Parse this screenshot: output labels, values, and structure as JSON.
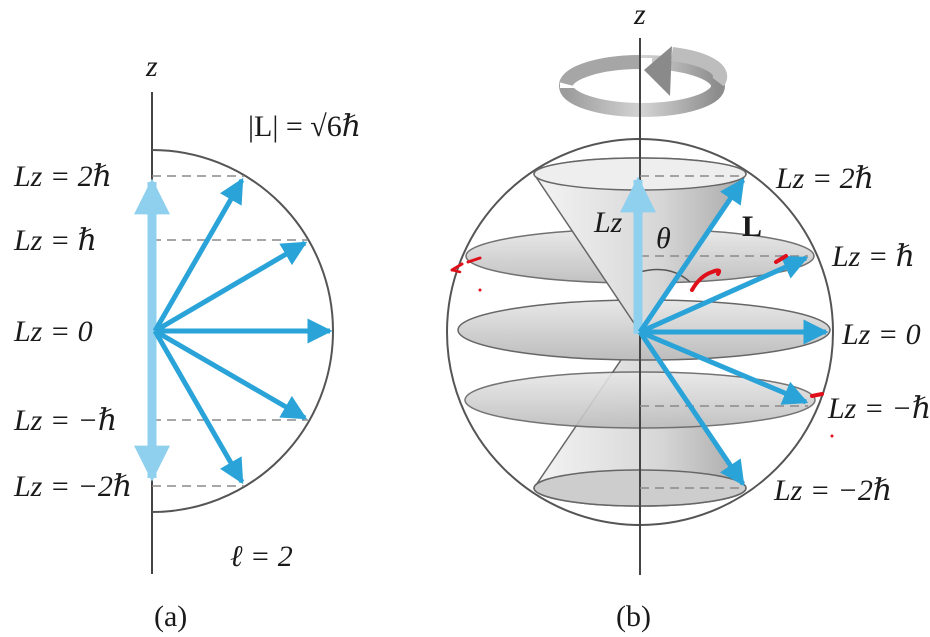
{
  "panel_a": {
    "axis_label": "z",
    "magnitude_label": "|L| = √6ℏ",
    "lz_labels": [
      "Lz = 2ℏ",
      "Lz = ℏ",
      "Lz = 0",
      "Lz = −ℏ",
      "Lz = −2ℏ"
    ],
    "quantum_number_label": "ℓ = 2",
    "caption": "(a)"
  },
  "panel_b": {
    "axis_label": "z",
    "lz_axis_label": "Lz",
    "theta_label": "θ",
    "vector_label": "L",
    "lz_labels": [
      "Lz = 2ℏ",
      "Lz = ℏ",
      "Lz = 0",
      "Lz = −ℏ",
      "Lz = −2ℏ"
    ],
    "caption": "(b)"
  },
  "colors": {
    "vector": "#2aa3d8",
    "vector_light": "#8fd0ee",
    "outline": "#555555",
    "dashed": "#8a8a8a",
    "cone_fill": "#d9d9d9",
    "disk_fill": "#cfcfcf",
    "annotation_red": "#e0101a"
  },
  "icons": [
    "rotation-arrow-icon"
  ]
}
